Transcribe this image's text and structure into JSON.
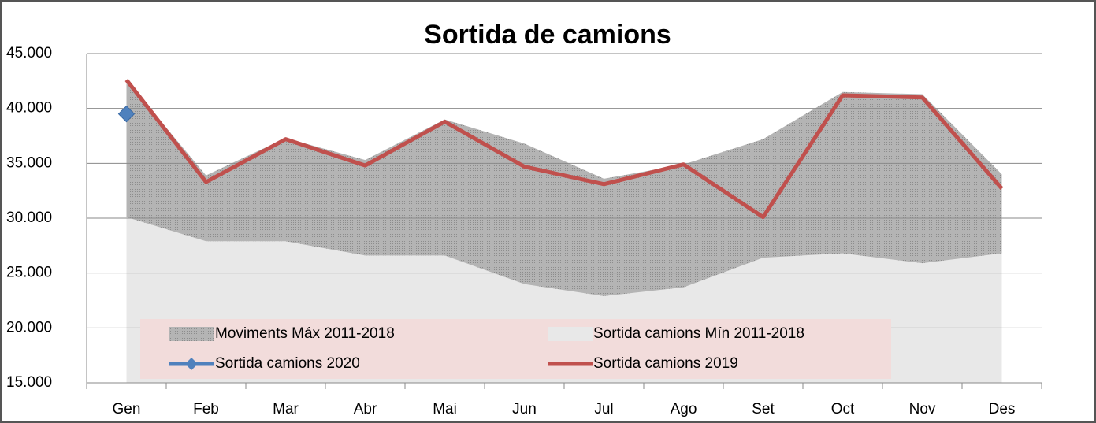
{
  "chart_data": {
    "type": "line",
    "title": "Sortida de camions",
    "categories": [
      "Gen",
      "Feb",
      "Mar",
      "Abr",
      "Mai",
      "Jun",
      "Jul",
      "Ago",
      "Set",
      "Oct",
      "Nov",
      "Des"
    ],
    "ylim": [
      15000,
      45000
    ],
    "yticks": [
      {
        "value": 15000,
        "label": "15.000"
      },
      {
        "value": 20000,
        "label": "20.000"
      },
      {
        "value": 25000,
        "label": "25.000"
      },
      {
        "value": 30000,
        "label": "30.000"
      },
      {
        "value": 35000,
        "label": "35.000"
      },
      {
        "value": 40000,
        "label": "40.000"
      },
      {
        "value": 45000,
        "label": "45.000"
      }
    ],
    "grid": true,
    "legend": "bottom",
    "series": [
      {
        "name": "Moviments Máx 2011-2018",
        "style": "area",
        "color": "#b4b4b4",
        "values": [
          42600,
          33900,
          37300,
          35300,
          39000,
          36800,
          33600,
          34900,
          37200,
          41500,
          41300,
          34000
        ]
      },
      {
        "name": "Sortida camions Mín 2011-2018",
        "style": "area",
        "color": "#e8e8e8",
        "values": [
          30100,
          27900,
          27900,
          26600,
          26600,
          24000,
          22900,
          23700,
          26400,
          26800,
          25900,
          26800
        ]
      },
      {
        "name": "Sortida camions 2020",
        "style": "marker",
        "color": "#4f81bd",
        "values": [
          39500,
          null,
          null,
          null,
          null,
          null,
          null,
          null,
          null,
          null,
          null,
          null
        ]
      },
      {
        "name": "Sortida camions 2019",
        "style": "line",
        "color": "#c0504d",
        "values": [
          42600,
          33300,
          37200,
          34800,
          38800,
          34700,
          33100,
          34900,
          30100,
          41200,
          41000,
          32700
        ]
      }
    ]
  }
}
